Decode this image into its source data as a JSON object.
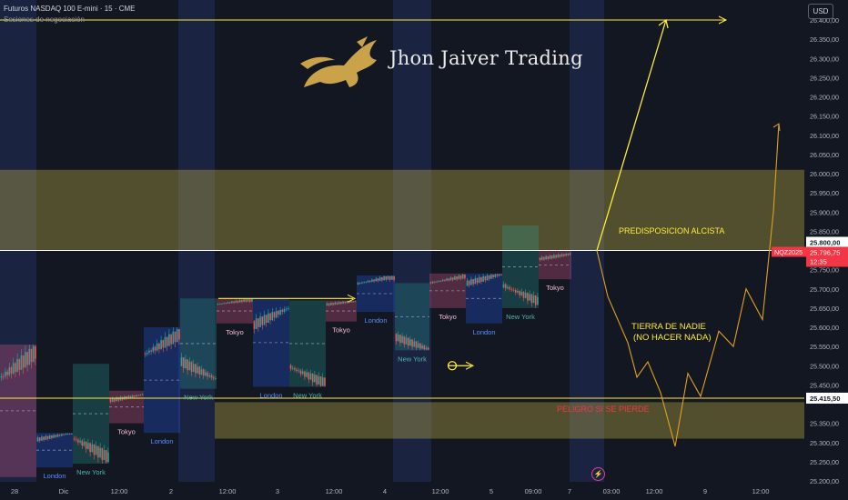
{
  "header": {
    "symbol_line": "Futuros NASDAQ 100 E-mini · 15 · CME",
    "indicator": "Sesiones de negociación",
    "currency": "USD"
  },
  "brand": {
    "name": "Jhon Jaiver Trading"
  },
  "colors": {
    "background": "#131722",
    "zone": "#d4c24a",
    "line_yellow": "#ffeb3b",
    "path_orange": "#e0a020",
    "price_tag": "#f23645",
    "candle_up": "#26a69a",
    "candle_down": "#ef5350"
  },
  "chart_data": {
    "type": "candlestick",
    "price_axis": {
      "ticks": [
        "26.400,00",
        "26.350,00",
        "26.300,00",
        "26.250,00",
        "26.200,00",
        "26.150,00",
        "26.100,00",
        "26.050,00",
        "26.000,00",
        "25.950,00",
        "25.900,00",
        "25.850,00",
        "25.750,00",
        "25.700,00",
        "25.650,00",
        "25.600,00",
        "25.550,00",
        "25.500,00",
        "25.450,00",
        "25.350,00",
        "25.300,00",
        "25.250,00",
        "25.200,00"
      ],
      "range": [
        25195,
        26410
      ]
    },
    "time_axis": {
      "ticks": [
        "28",
        "Dic",
        "12:00",
        "2",
        "12:00",
        "3",
        "12:00",
        "4",
        "12:00",
        "5",
        "09:00",
        "7",
        "03:00",
        "12:00",
        "9",
        "12:00"
      ]
    },
    "price_labels": [
      {
        "text": "25.800,00",
        "value": 25800,
        "style": "line"
      },
      {
        "text": "NQZ2025",
        "value": 25796.75,
        "style": "tag"
      },
      {
        "text": "25.796,75",
        "value": 25796.75,
        "style": "tag"
      },
      {
        "text": "12:35",
        "value": 25796.75,
        "style": "tag_time"
      },
      {
        "text": "25.415,50",
        "value": 25415.5,
        "style": "line"
      }
    ],
    "levels": [
      {
        "value": 25800,
        "color": "#ffffff"
      },
      {
        "value": 25415.5,
        "color": "#ffeb3b"
      },
      {
        "value": 26400,
        "color": "#ffeb3b",
        "from_session": 0,
        "to_session": 13
      }
    ],
    "zones": [
      {
        "from": 25800,
        "to": 26010,
        "label": "PREDISPOSICION ALCISTA"
      },
      {
        "from": 25310,
        "to": 25405,
        "label": "PELIGRO SI SE PIERDE"
      }
    ],
    "annotations": [
      "TIERRA DE NADIE",
      "(NO HACER NADA)"
    ],
    "sessions": [
      {
        "label": "Tokyo",
        "high": 25555,
        "low": 25210,
        "bull": false
      },
      {
        "label": "London",
        "high": 25325,
        "low": 25235,
        "bull": false
      },
      {
        "label": "New York",
        "high": 25505,
        "low": 25245,
        "bull": true
      },
      {
        "label": "Tokyo",
        "high": 25435,
        "low": 25350,
        "bull": false
      },
      {
        "label": "London",
        "high": 25600,
        "low": 25325,
        "bull": false
      },
      {
        "label": "New York",
        "high": 25675,
        "low": 25440,
        "bull": true
      },
      {
        "label": "Tokyo",
        "high": 25675,
        "low": 25610,
        "bull": false
      },
      {
        "label": "London",
        "high": 25675,
        "low": 25445,
        "bull": false
      },
      {
        "label": "New York",
        "high": 25670,
        "low": 25445,
        "bull": true
      },
      {
        "label": "Tokyo",
        "high": 25670,
        "low": 25615,
        "bull": false
      },
      {
        "label": "London",
        "high": 25735,
        "low": 25640,
        "bull": false
      },
      {
        "label": "New York",
        "high": 25715,
        "low": 25540,
        "bull": true
      },
      {
        "label": "Tokyo",
        "high": 25740,
        "low": 25650,
        "bull": false
      },
      {
        "label": "London",
        "high": 25740,
        "low": 25610,
        "bull": false
      },
      {
        "label": "New York",
        "high": 25865,
        "low": 25650,
        "bull": true
      },
      {
        "label": "Tokyo",
        "high": 25800,
        "low": 25725,
        "bull": false
      }
    ],
    "projections": [
      {
        "name": "bullish-projection",
        "from": 25800,
        "to": 26400
      },
      {
        "name": "zigzag-scenario",
        "points": [
          25800,
          25680,
          25560,
          25470,
          25510,
          25430,
          25290,
          25480,
          25420,
          25590,
          25550,
          25700,
          25620,
          25900,
          25860,
          26130
        ]
      }
    ]
  }
}
